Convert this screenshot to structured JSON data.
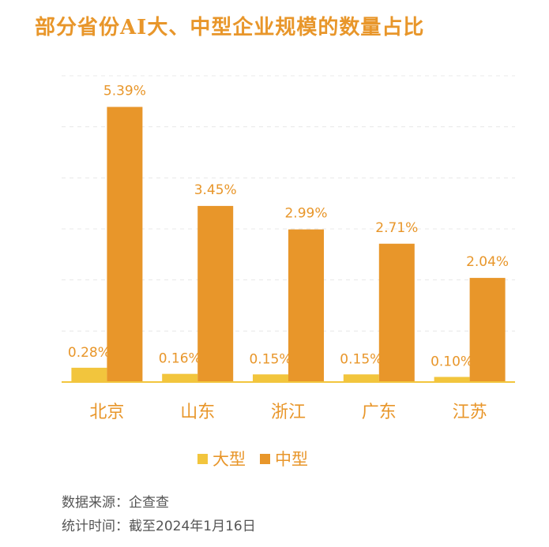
{
  "title": "部分省份AI大、中型企业规模的数量占比",
  "chart_data": {
    "type": "bar",
    "title": "部分省份AI大、中型企业规模的数量占比",
    "categories": [
      "北京",
      "山东",
      "浙江",
      "广东",
      "江苏"
    ],
    "series": [
      {
        "name": "大型",
        "color": "#F2C53D",
        "values": [
          0.28,
          0.16,
          0.15,
          0.15,
          0.1
        ],
        "labels": [
          "0.28%",
          "0.16%",
          "0.15%",
          "0.15%",
          "0.10%"
        ]
      },
      {
        "name": "中型",
        "color": "#E8962A",
        "values": [
          5.39,
          3.45,
          2.99,
          2.71,
          2.04
        ],
        "labels": [
          "5.39%",
          "3.45%",
          "2.99%",
          "2.71%",
          "2.04%"
        ]
      }
    ],
    "ylim": [
      0,
      6
    ],
    "grid": true,
    "legend_position": "bottom",
    "xlabel": "",
    "ylabel": ""
  },
  "footer": {
    "source": "数据来源：企查查",
    "date": "统计时间：截至2024年1月16日"
  }
}
